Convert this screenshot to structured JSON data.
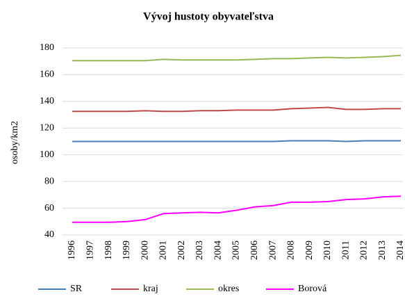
{
  "chart_data": {
    "type": "line",
    "title": "Vývoj hustoty obyvateľstva",
    "y_label": "osoby/km2",
    "categories": [
      "1996",
      "1997",
      "1998",
      "1999",
      "2000",
      "2001",
      "2002",
      "2003",
      "2004",
      "2005",
      "2006",
      "2007",
      "2008",
      "2009",
      "2010",
      "2011",
      "2012",
      "2013",
      "2014"
    ],
    "series": [
      {
        "name": "SR",
        "color": "#4a7ebb",
        "values": [
          110,
          110,
          110,
          110,
          110,
          110,
          110,
          110,
          110,
          110,
          110,
          110,
          110.5,
          110.5,
          110.5,
          110,
          110.5,
          110.5,
          110.5
        ]
      },
      {
        "name": "kraj",
        "color": "#be4b48",
        "values": [
          132.5,
          132.5,
          132.5,
          132.5,
          133,
          132.5,
          132.5,
          133,
          133,
          133.5,
          133.5,
          133.5,
          134.5,
          135,
          135.5,
          134,
          134,
          134.5,
          134.5
        ]
      },
      {
        "name": "okres",
        "color": "#98b954",
        "values": [
          170.5,
          170.5,
          170.5,
          170.5,
          170.5,
          171.5,
          171,
          171,
          171,
          171,
          171.5,
          172,
          172,
          172.5,
          173,
          172.5,
          173,
          173.5,
          174.5
        ]
      },
      {
        "name": "Borová",
        "color": "#ff00ff",
        "values": [
          49.5,
          49.5,
          49.5,
          50,
          51.5,
          56,
          56.5,
          57,
          56.5,
          58.5,
          61,
          62,
          64.5,
          64.5,
          65,
          66.5,
          67,
          68.5,
          69
        ]
      }
    ],
    "ylim": [
      40,
      180
    ],
    "yticks": [
      40,
      60,
      80,
      100,
      120,
      140,
      160,
      180
    ],
    "grid": true,
    "legend": "bottom"
  }
}
